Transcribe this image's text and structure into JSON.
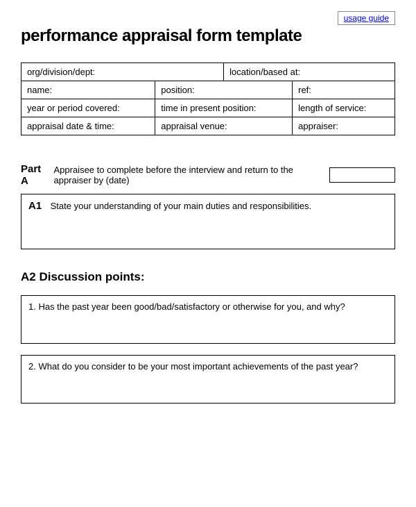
{
  "usage_guide_label": "usage guide",
  "title": "performance appraisal form template",
  "info_table": {
    "row1": {
      "col1": "org/division/dept:",
      "col2": "location/based at:"
    },
    "row2": {
      "col1": "name:",
      "col2": "position:",
      "col3": "ref:"
    },
    "row3": {
      "col1": "year or period covered:",
      "col2": "time in present position:",
      "col3": "length of service:"
    },
    "row4": {
      "col1": "appraisal date & time:",
      "col2": "appraisal venue:",
      "col3": "appraiser:"
    }
  },
  "part_a": {
    "label": "Part A",
    "instruction": "Appraisee to complete before the interview and return to the appraiser by (date)"
  },
  "a1": {
    "label": "A1",
    "text": "State your understanding of your main duties and responsibilities."
  },
  "a2": {
    "heading": "A2 Discussion points:",
    "q1": "1. Has the past year been good/bad/satisfactory or otherwise for you, and why?",
    "q2": "2. What do you consider to be your most important achievements of the past year?"
  },
  "colors": {
    "text": "#000000",
    "background": "#ffffff",
    "link": "#0000ee",
    "border": "#000000"
  }
}
